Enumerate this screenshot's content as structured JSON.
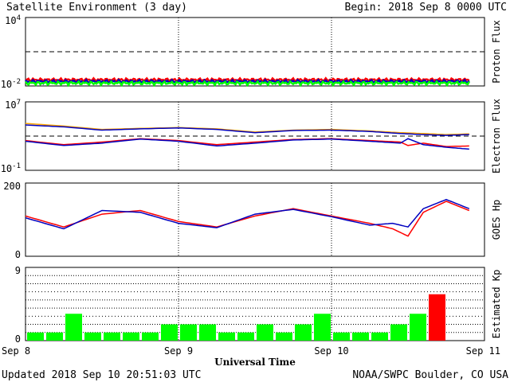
{
  "header": {
    "title": "Satellite Environment (3 day)",
    "begin": "Begin:  2018 Sep 8 0000 UTC"
  },
  "footer": {
    "updated": "Updated 2018 Sep 10 20:51:03 UTC",
    "credit": "NOAA/SWPC Boulder, CO USA",
    "xlabel": "Universal Time"
  },
  "x_ticks": [
    "Sep 8",
    "Sep 9",
    "Sep 10",
    "Sep 11"
  ],
  "colors": {
    "red": "#ff0000",
    "blue": "#0000c0",
    "green": "#00ff00",
    "orange": "#ffa500"
  },
  "chart_data": [
    {
      "type": "line",
      "ylabel": "Proton Flux",
      "y_scale": "log",
      "y_ticks": [
        "10^4",
        "10^-2"
      ],
      "ylim": [
        0.01,
        10000
      ],
      "threshold": 10,
      "series": [
        {
          "color": "red",
          "level": 0.035
        },
        {
          "color": "blue",
          "level": 0.025
        },
        {
          "color": "green",
          "level": 0.018
        }
      ]
    },
    {
      "type": "line",
      "ylabel": "Electron Flux",
      "y_scale": "log",
      "y_ticks": [
        "10^7",
        "10^-1"
      ],
      "ylim": [
        0.1,
        10000000
      ],
      "threshold": 1000,
      "series": [
        {
          "color": "orange",
          "x": [
            0,
            0.25,
            0.5,
            0.75,
            1.0,
            1.25,
            1.5,
            1.75,
            2.0,
            2.25,
            2.45,
            2.6,
            2.75,
            2.9
          ],
          "y": [
            30000,
            15000,
            6000,
            8000,
            10000,
            7000,
            3000,
            5000,
            6000,
            4000,
            2500,
            2000,
            1500,
            1800
          ]
        },
        {
          "color": "blue",
          "x": [
            0,
            0.25,
            0.5,
            0.75,
            1.0,
            1.25,
            1.5,
            1.75,
            2.0,
            2.25,
            2.45,
            2.6,
            2.75,
            2.9
          ],
          "y": [
            20000,
            12000,
            5000,
            7000,
            9000,
            6000,
            2500,
            4500,
            5000,
            3500,
            2000,
            1500,
            1200,
            1500
          ]
        },
        {
          "color": "red",
          "x": [
            0,
            0.25,
            0.5,
            0.75,
            1.0,
            1.25,
            1.5,
            1.75,
            2.0,
            2.25,
            2.45,
            2.5,
            2.6,
            2.75,
            2.9
          ],
          "y": [
            300,
            100,
            200,
            500,
            300,
            100,
            200,
            400,
            500,
            300,
            200,
            80,
            150,
            60,
            70
          ]
        },
        {
          "color": "blue",
          "x": [
            0,
            0.25,
            0.5,
            0.75,
            1.0,
            1.25,
            1.5,
            1.75,
            2.0,
            2.25,
            2.45,
            2.5,
            2.6,
            2.75,
            2.9
          ],
          "y": [
            250,
            80,
            150,
            450,
            250,
            70,
            150,
            350,
            450,
            250,
            150,
            500,
            100,
            50,
            30
          ]
        }
      ]
    },
    {
      "type": "line",
      "ylabel": "GOES Hp",
      "y_ticks": [
        "200",
        "0"
      ],
      "ylim": [
        0,
        200
      ],
      "series": [
        {
          "color": "red",
          "x": [
            0,
            0.25,
            0.5,
            0.75,
            1.0,
            1.25,
            1.5,
            1.75,
            2.0,
            2.25,
            2.4,
            2.5,
            2.6,
            2.75,
            2.9
          ],
          "y": [
            110,
            80,
            115,
            125,
            95,
            80,
            110,
            130,
            110,
            90,
            75,
            55,
            120,
            150,
            125
          ]
        },
        {
          "color": "blue",
          "x": [
            0,
            0.25,
            0.5,
            0.75,
            1.0,
            1.25,
            1.5,
            1.75,
            2.0,
            2.25,
            2.4,
            2.5,
            2.6,
            2.75,
            2.9
          ],
          "y": [
            105,
            75,
            125,
            120,
            90,
            78,
            115,
            128,
            108,
            85,
            90,
            80,
            130,
            155,
            130
          ]
        }
      ]
    },
    {
      "type": "bar",
      "ylabel": "Estimated Kp",
      "y_ticks": [
        "9",
        "0"
      ],
      "ylim": [
        0,
        9
      ],
      "x_start": [
        0,
        0.125,
        0.25,
        0.375,
        0.5,
        0.625,
        0.75,
        0.875,
        1.0,
        1.125,
        1.25,
        1.375,
        1.5,
        1.625,
        1.75,
        1.875,
        2.0,
        2.125,
        2.25,
        2.375,
        2.5,
        2.625
      ],
      "values": [
        1,
        1,
        3.3,
        1,
        1,
        1,
        1,
        2,
        2,
        2,
        1,
        1,
        2,
        1,
        2,
        3.3,
        1,
        1,
        1,
        2,
        3.3,
        5.7
      ],
      "colors": [
        "green",
        "green",
        "green",
        "green",
        "green",
        "green",
        "green",
        "green",
        "green",
        "green",
        "green",
        "green",
        "green",
        "green",
        "green",
        "green",
        "green",
        "green",
        "green",
        "green",
        "green",
        "red"
      ]
    }
  ]
}
